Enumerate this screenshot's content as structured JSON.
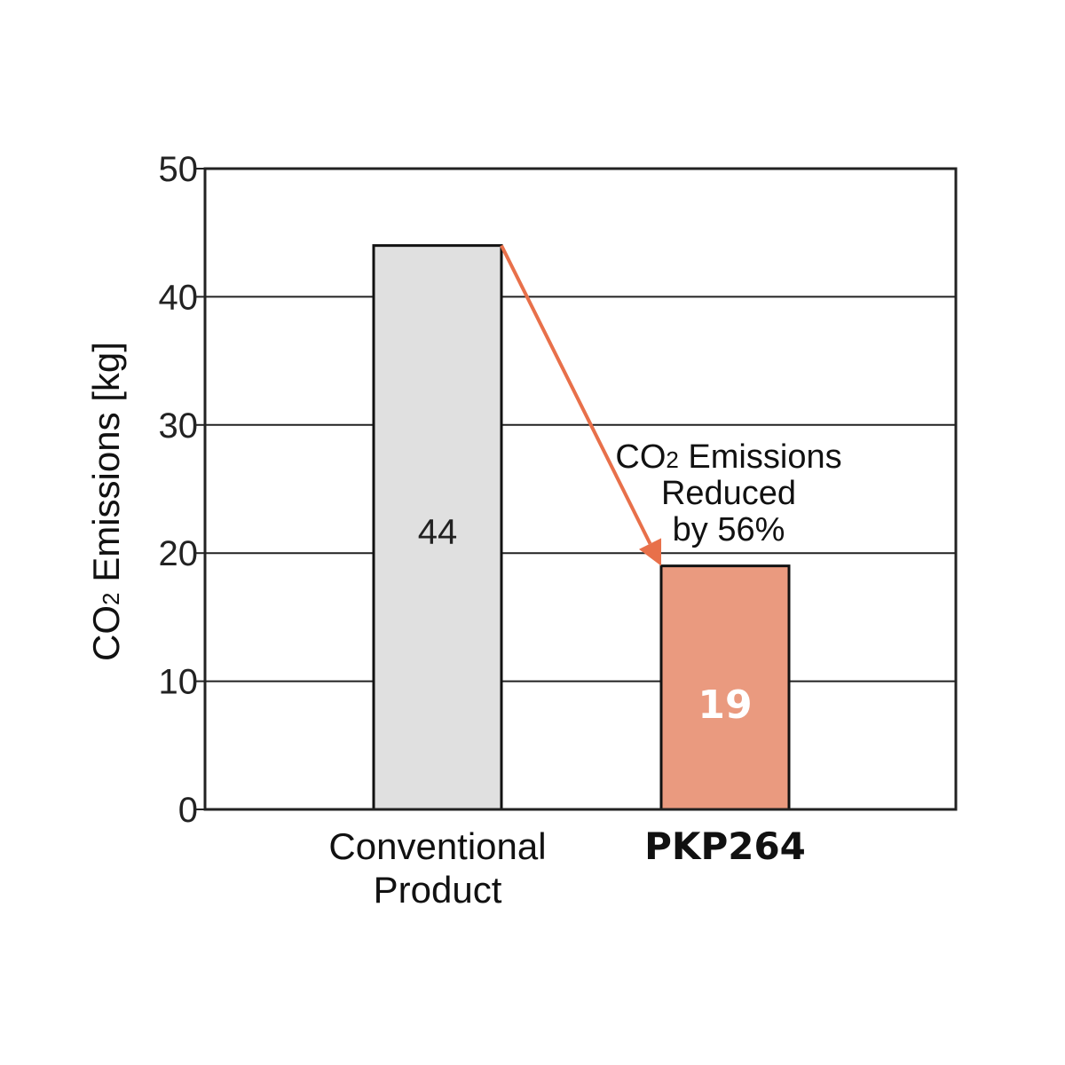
{
  "chart_data": {
    "type": "bar",
    "categories": [
      "Conventional\nProduct",
      "PKP264"
    ],
    "values": [
      44,
      19
    ],
    "value_labels": [
      "44",
      "19"
    ],
    "bar_colors": [
      "#e0e0e0",
      "#ea9a7f"
    ],
    "ylabel_main": "CO",
    "ylabel_sub": "2",
    "ylabel_rest": " Emissions [kg]",
    "ylim": [
      0,
      50
    ],
    "yticks": [
      0,
      10,
      20,
      30,
      40,
      50
    ],
    "grid": true,
    "annotation": {
      "line1_main": "CO",
      "line1_sub": "2",
      "line1_rest": " Emissions",
      "line2": "Reduced",
      "line3": "by 56%"
    },
    "arrow_color": "#e8704a"
  }
}
